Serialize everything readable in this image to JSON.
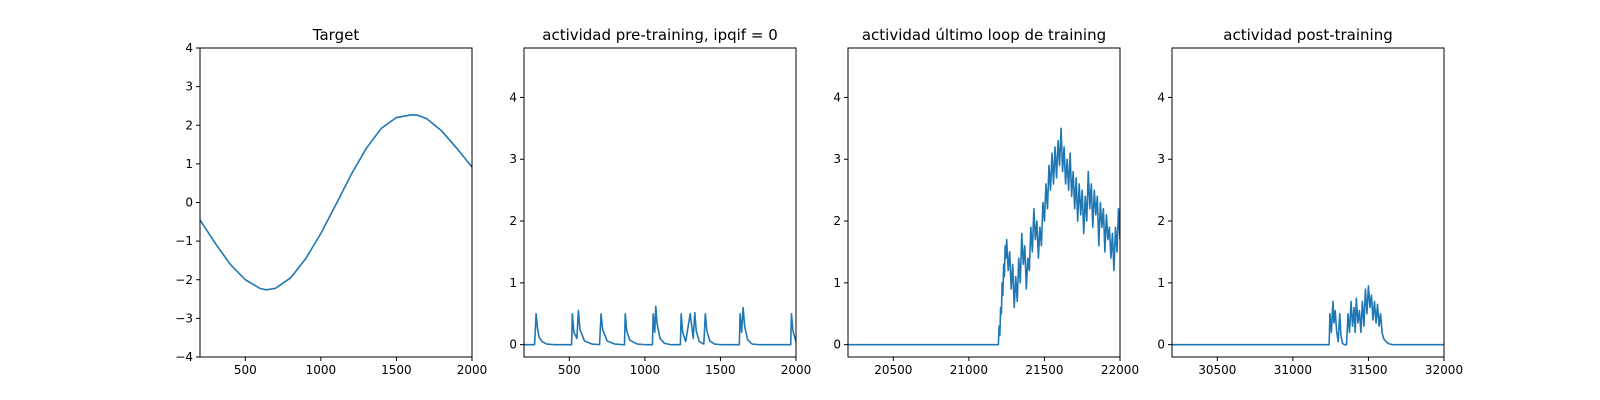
{
  "line_color": "#1f77b4",
  "chart_data": [
    {
      "type": "line",
      "title": "Target",
      "xlabel": "",
      "ylabel": "",
      "xlim": [
        200,
        2000
      ],
      "ylim": [
        -4,
        4
      ],
      "xticks": [
        500,
        1000,
        1500,
        2000
      ],
      "yticks": [
        -4,
        -3,
        -2,
        -1,
        0,
        1,
        2,
        3,
        4
      ],
      "grid": false,
      "series": [
        {
          "x": [
            200,
            300,
            400,
            500,
            600,
            640,
            700,
            800,
            900,
            1000,
            1100,
            1200,
            1300,
            1400,
            1500,
            1600,
            1640,
            1700,
            1800,
            1900,
            2000
          ],
          "y": [
            -0.45,
            -1.05,
            -1.6,
            -2.0,
            -2.23,
            -2.26,
            -2.22,
            -1.95,
            -1.45,
            -0.8,
            -0.05,
            0.72,
            1.4,
            1.92,
            2.2,
            2.27,
            2.26,
            2.17,
            1.85,
            1.4,
            0.92
          ]
        }
      ]
    },
    {
      "type": "line",
      "title": "actividad pre-training, ipqif = 0",
      "xlabel": "",
      "ylabel": "",
      "xlim": [
        200,
        2000
      ],
      "ylim": [
        -0.2,
        4.8
      ],
      "xticks": [
        500,
        1000,
        1500,
        2000
      ],
      "yticks": [
        0,
        1,
        2,
        3,
        4
      ],
      "grid": false,
      "series": [
        {
          "x": [
            200,
            270,
            280,
            290,
            300,
            320,
            350,
            400,
            450,
            515,
            520,
            530,
            550,
            560,
            570,
            600,
            650,
            700,
            710,
            720,
            750,
            800,
            850,
            865,
            870,
            880,
            900,
            950,
            1000,
            1050,
            1055,
            1065,
            1072,
            1080,
            1100,
            1130,
            1170,
            1200,
            1235,
            1240,
            1250,
            1270,
            1300,
            1320,
            1330,
            1340,
            1360,
            1390,
            1400,
            1410,
            1430,
            1460,
            1500,
            1550,
            1600,
            1625,
            1630,
            1640,
            1650,
            1660,
            1680,
            1710,
            1750,
            1800,
            1850,
            1900,
            1950,
            1965,
            1970,
            1980,
            2000
          ],
          "y": [
            0,
            0,
            0.5,
            0.25,
            0.12,
            0.05,
            0.01,
            0,
            0,
            0,
            0.5,
            0.2,
            0.1,
            0.55,
            0.25,
            0.06,
            0.01,
            0,
            0.5,
            0.25,
            0.06,
            0.01,
            0,
            0,
            0.5,
            0.22,
            0.07,
            0.01,
            0,
            0,
            0.5,
            0.2,
            0.62,
            0.35,
            0.1,
            0.02,
            0,
            0,
            0,
            0.5,
            0.2,
            0.05,
            0.5,
            0.1,
            0.52,
            0.22,
            0.05,
            0.01,
            0.5,
            0.22,
            0.06,
            0.01,
            0,
            0,
            0,
            0,
            0.5,
            0.2,
            0.6,
            0.3,
            0.08,
            0.01,
            0,
            0,
            0,
            0,
            0,
            0,
            0.5,
            0.22,
            0.05
          ]
        }
      ]
    },
    {
      "type": "line",
      "title": "actividad último loop de training",
      "xlabel": "",
      "ylabel": "",
      "xlim": [
        20200,
        22000
      ],
      "ylim": [
        -0.2,
        4.8
      ],
      "xticks": [
        20500,
        21000,
        21500,
        22000
      ],
      "yticks": [
        0,
        1,
        2,
        3,
        4
      ],
      "grid": false,
      "series": [
        {
          "x": [
            20200,
            20600,
            21000,
            21195,
            21200,
            21205,
            21210,
            21215,
            21220,
            21225,
            21230,
            21235,
            21240,
            21245,
            21250,
            21260,
            21270,
            21280,
            21290,
            21300,
            21310,
            21320,
            21330,
            21340,
            21350,
            21360,
            21370,
            21380,
            21390,
            21400,
            21410,
            21420,
            21430,
            21440,
            21450,
            21460,
            21470,
            21480,
            21490,
            21500,
            21510,
            21520,
            21530,
            21540,
            21550,
            21560,
            21570,
            21580,
            21590,
            21600,
            21610,
            21620,
            21630,
            21640,
            21650,
            21660,
            21670,
            21680,
            21690,
            21700,
            21710,
            21720,
            21730,
            21740,
            21750,
            21760,
            21770,
            21780,
            21790,
            21800,
            21810,
            21820,
            21830,
            21840,
            21850,
            21860,
            21870,
            21880,
            21890,
            21900,
            21910,
            21920,
            21930,
            21940,
            21950,
            21960,
            21970,
            21980,
            21990,
            22000
          ],
          "y": [
            0,
            0,
            0,
            0,
            0.3,
            0.15,
            0.6,
            0.5,
            1.0,
            0.8,
            1.3,
            1.1,
            1.6,
            1.4,
            1.7,
            1.2,
            1.5,
            0.9,
            1.3,
            0.6,
            1.1,
            0.7,
            1.4,
            1.0,
            1.8,
            1.3,
            1.6,
            0.9,
            1.4,
            1.2,
            1.9,
            1.5,
            2.2,
            1.7,
            2.0,
            1.4,
            1.9,
            1.6,
            2.3,
            2.0,
            2.6,
            2.2,
            2.9,
            2.5,
            3.1,
            2.6,
            3.2,
            2.7,
            3.3,
            2.9,
            3.5,
            2.8,
            3.2,
            2.6,
            3.0,
            2.5,
            3.1,
            2.4,
            2.8,
            2.2,
            2.7,
            2.0,
            2.6,
            2.1,
            2.5,
            1.8,
            2.4,
            2.0,
            2.8,
            2.2,
            2.6,
            1.9,
            2.5,
            2.1,
            2.4,
            1.6,
            2.3,
            1.9,
            2.2,
            1.5,
            2.1,
            1.7,
            1.9,
            1.4,
            1.8,
            1.2,
            1.9,
            1.5,
            2.2,
            1.7
          ]
        }
      ]
    },
    {
      "type": "line",
      "title": "actividad post-training",
      "xlabel": "",
      "ylabel": "",
      "xlim": [
        30200,
        32000
      ],
      "ylim": [
        -0.2,
        4.8
      ],
      "xticks": [
        30500,
        31000,
        31500,
        32000
      ],
      "yticks": [
        0,
        1,
        2,
        3,
        4
      ],
      "grid": false,
      "series": [
        {
          "x": [
            30200,
            30600,
            31000,
            31240,
            31245,
            31255,
            31265,
            31272,
            31280,
            31290,
            31300,
            31310,
            31318,
            31328,
            31340,
            31355,
            31365,
            31375,
            31385,
            31395,
            31405,
            31412,
            31420,
            31430,
            31440,
            31450,
            31460,
            31470,
            31480,
            31490,
            31500,
            31510,
            31520,
            31530,
            31540,
            31550,
            31560,
            31570,
            31580,
            31590,
            31600,
            31620,
            31640,
            31660,
            31700,
            31800,
            31900,
            32000
          ],
          "y": [
            0,
            0,
            0,
            0,
            0.5,
            0.2,
            0.7,
            0.35,
            0.55,
            0.2,
            0.05,
            0.5,
            0.15,
            0.02,
            0,
            0,
            0.5,
            0.2,
            0.7,
            0.3,
            0.6,
            0.2,
            0.75,
            0.35,
            0.55,
            0.2,
            0.7,
            0.3,
            0.9,
            0.5,
            0.95,
            0.6,
            0.8,
            0.4,
            0.7,
            0.35,
            0.65,
            0.3,
            0.5,
            0.2,
            0.1,
            0.04,
            0.01,
            0,
            0,
            0,
            0,
            0
          ]
        }
      ]
    }
  ]
}
